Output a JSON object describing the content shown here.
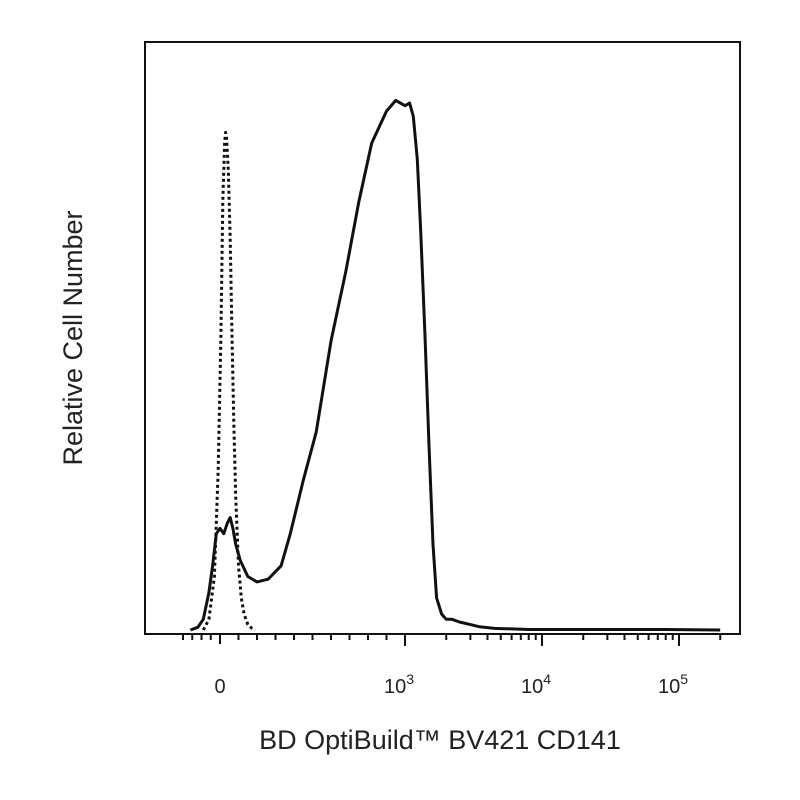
{
  "chart_data": {
    "type": "line",
    "title": "",
    "xlabel": "BD OptiBuild™ BV421 CD141",
    "ylabel": "Relative Cell Number",
    "x_scale": "biexponential",
    "y_scale": "linear",
    "xlim": [
      -150,
      200000
    ],
    "ylim": [
      0,
      100
    ],
    "x_ticks": [
      {
        "value": 0,
        "base": "0",
        "exp": ""
      },
      {
        "value": 1000,
        "base": "10",
        "exp": "3"
      },
      {
        "value": 10000,
        "base": "10",
        "exp": "4"
      },
      {
        "value": 100000,
        "base": "10",
        "exp": "5"
      }
    ],
    "grid": false,
    "legend": "none",
    "series": [
      {
        "style": "dotted",
        "color": "#111111",
        "x": [
          -90,
          -60,
          -30,
          -10,
          5,
          15,
          25,
          30,
          35,
          45,
          55,
          65,
          75,
          85,
          100,
          115,
          130,
          150,
          170,
          190
        ],
        "y": [
          0,
          2,
          10,
          30,
          55,
          80,
          91,
          93,
          92,
          86,
          73,
          55,
          38,
          25,
          12,
          6,
          3,
          1,
          0.4,
          0
        ]
      },
      {
        "style": "solid",
        "color": "#111111",
        "x": [
          -160,
          -120,
          -90,
          -60,
          -40,
          -20,
          0,
          20,
          40,
          55,
          70,
          85,
          110,
          150,
          200,
          260,
          330,
          380,
          450,
          520,
          600,
          680,
          750,
          820,
          900,
          950,
          1000,
          1080,
          1150,
          1230,
          1300,
          1400,
          1500,
          1600,
          1700,
          1850,
          2000,
          2200,
          2500,
          3000,
          3500,
          4500,
          6000,
          8000,
          12000,
          30000,
          80000,
          200000
        ],
        "y": [
          0,
          0.5,
          2,
          7,
          12,
          18,
          19,
          18,
          20,
          21,
          19,
          16,
          13,
          10,
          9,
          9.5,
          12,
          18,
          28,
          37,
          54,
          67,
          80,
          91,
          97,
          99,
          98,
          98.5,
          96,
          88,
          75,
          55,
          34,
          16,
          6,
          3,
          2,
          2,
          1.5,
          1,
          0.6,
          0.3,
          0.2,
          0.1,
          0.1,
          0.1,
          0.1,
          0
        ]
      }
    ]
  }
}
